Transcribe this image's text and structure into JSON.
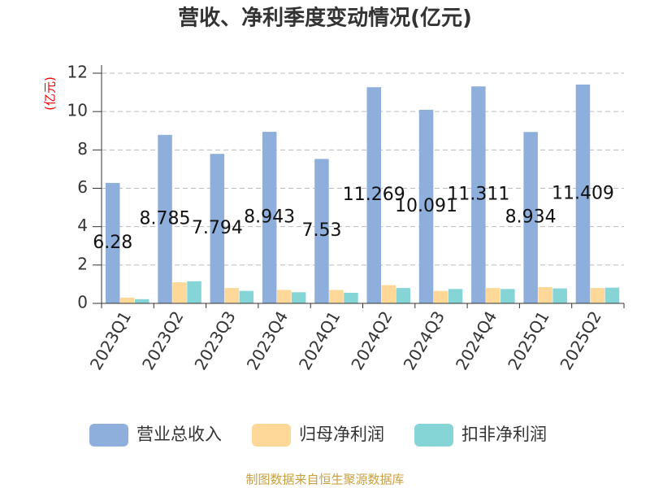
{
  "chart_data": {
    "type": "bar",
    "title": "营收、净利季度变动情况(亿元)",
    "y_label": "(亿元)",
    "source": "制图数据来自恒生聚源数据库",
    "categories": [
      "2023Q1",
      "2023Q2",
      "2023Q3",
      "2023Q4",
      "2024Q1",
      "2024Q2",
      "2024Q3",
      "2024Q4",
      "2025Q1",
      "2025Q2"
    ],
    "series": [
      {
        "name": "营业总收入",
        "color": "#8eaedc",
        "values": [
          6.28,
          8.785,
          7.794,
          8.943,
          7.53,
          11.269,
          10.091,
          11.311,
          8.934,
          11.409
        ]
      },
      {
        "name": "归母净利润",
        "color": "#fdd899",
        "values": [
          0.3,
          1.1,
          0.8,
          0.7,
          0.7,
          0.95,
          0.65,
          0.8,
          0.85,
          0.8
        ]
      },
      {
        "name": "扣非净利润",
        "color": "#86d5d6",
        "values": [
          0.22,
          1.15,
          0.65,
          0.58,
          0.55,
          0.8,
          0.75,
          0.75,
          0.78,
          0.82
        ]
      }
    ],
    "ylim": [
      0,
      12
    ],
    "yticks": [
      0,
      2,
      4,
      6,
      8,
      10,
      12
    ],
    "grid": true
  }
}
